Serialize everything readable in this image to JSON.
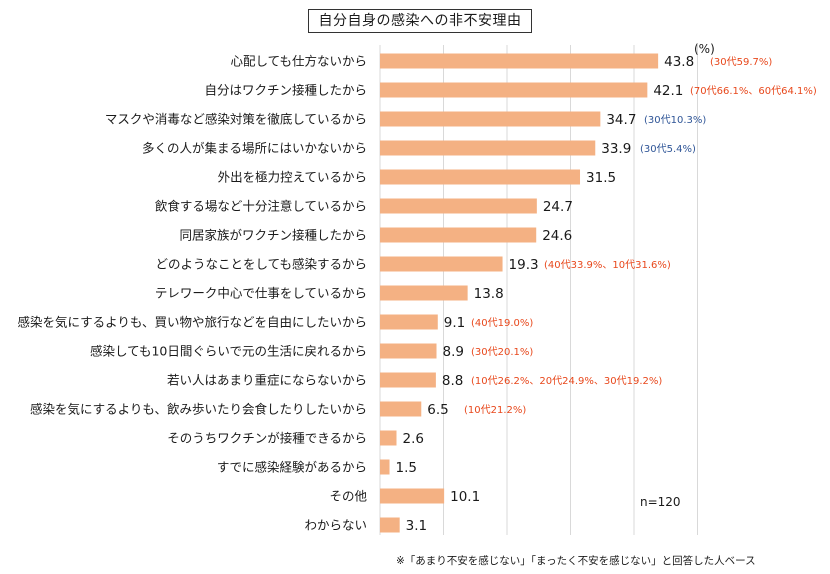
{
  "colors": {
    "bar": "#F4B183",
    "grid": "#D9D9D9",
    "note_red": "#E8481C",
    "note_blue": "#2F5597"
  },
  "unit_label": "(%)",
  "sample_size": "n=120",
  "footnote": "※「あまり不安を感じない」「まったく不安を感じない」と回答した人ベース",
  "chart_data": {
    "type": "bar",
    "orientation": "horizontal",
    "title": "自分自身の感染への非不安理由",
    "xlim": [
      0,
      50
    ],
    "grid": true,
    "categories": [
      "心配しても仕方ないから",
      "自分はワクチン接種したから",
      "マスクや消毒など感染対策を徹底しているから",
      "多くの人が集まる場所にはいかないから",
      "外出を極力控えているから",
      "飲食する場など十分注意しているから",
      "同居家族がワクチン接種したから",
      "どのようなことをしても感染するから",
      "テレワーク中心で仕事をしているから",
      "感染を気にするよりも、買い物や旅行などを自由にしたいから",
      "感染しても10日間ぐらいで元の生活に戻れるから",
      "若い人はあまり重症にならないから",
      "感染を気にするよりも、飲み歩いたり会食したりしたいから",
      "そのうちワクチンが接種できるから",
      "すでに感染経験があるから",
      "その他",
      "わからない"
    ],
    "values": [
      43.8,
      42.1,
      34.7,
      33.9,
      31.5,
      24.7,
      24.6,
      19.3,
      13.8,
      9.1,
      8.9,
      8.8,
      6.5,
      2.6,
      1.5,
      10.1,
      3.1
    ],
    "value_labels": [
      "43.8",
      "42.1",
      "34.7",
      "33.9",
      "31.5",
      "24.7",
      "24.6",
      "19.3",
      "13.8",
      "9.1",
      "8.9",
      "8.8",
      "6.5",
      "2.6",
      "1.5",
      "10.1",
      "3.1"
    ],
    "annotations": [
      {
        "index": 0,
        "text": "(30代59.7%)",
        "color": "red"
      },
      {
        "index": 1,
        "text": "(70代66.1%、60代64.1%)",
        "color": "red"
      },
      {
        "index": 2,
        "text": "(30代10.3%)",
        "color": "blue"
      },
      {
        "index": 3,
        "text": "(30代5.4%)",
        "color": "blue"
      },
      {
        "index": 7,
        "text": "(40代33.9%、10代31.6%)",
        "color": "red"
      },
      {
        "index": 9,
        "text": "(40代19.0%)",
        "color": "red"
      },
      {
        "index": 10,
        "text": "(30代20.1%)",
        "color": "red"
      },
      {
        "index": 11,
        "text": "(10代26.2%、20代24.9%、30代19.2%)",
        "color": "red"
      },
      {
        "index": 12,
        "text": "(10代21.2%)",
        "color": "red"
      }
    ]
  }
}
